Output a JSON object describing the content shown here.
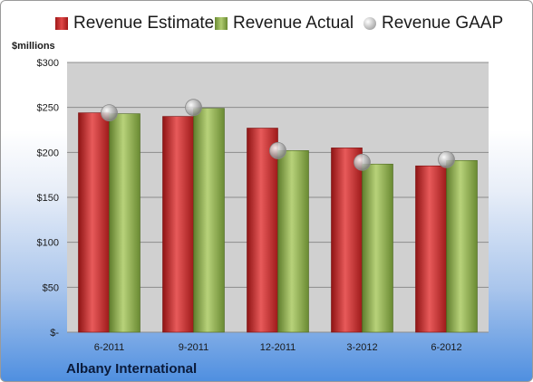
{
  "chart_data": {
    "type": "bar",
    "title": "",
    "xlabel": "",
    "ylabel": "$millions",
    "ylim": [
      0,
      300
    ],
    "y_ticks": [
      0,
      50,
      100,
      150,
      200,
      250,
      300
    ],
    "y_tick_labels": [
      "$-",
      "$50",
      "$100",
      "$150",
      "$200",
      "$250",
      "$300"
    ],
    "categories": [
      "6-2011",
      "9-2011",
      "12-2011",
      "3-2012",
      "6-2012"
    ],
    "series": [
      {
        "name": "Revenue Estimate",
        "kind": "bar",
        "values": [
          244,
          240,
          227,
          205,
          185
        ]
      },
      {
        "name": "Revenue Actual",
        "kind": "bar",
        "values": [
          243,
          249,
          202,
          187,
          191
        ]
      },
      {
        "name": "Revenue GAAP",
        "kind": "marker",
        "values": [
          244,
          250,
          202,
          189,
          192
        ]
      }
    ],
    "grid": true,
    "legend_position": "top"
  },
  "colors": {
    "estimate": "#c62828",
    "actual": "#8fad4f",
    "gaap": "#bdbdbd",
    "plot_background": "#d0d0d0"
  },
  "company": "Albany International"
}
